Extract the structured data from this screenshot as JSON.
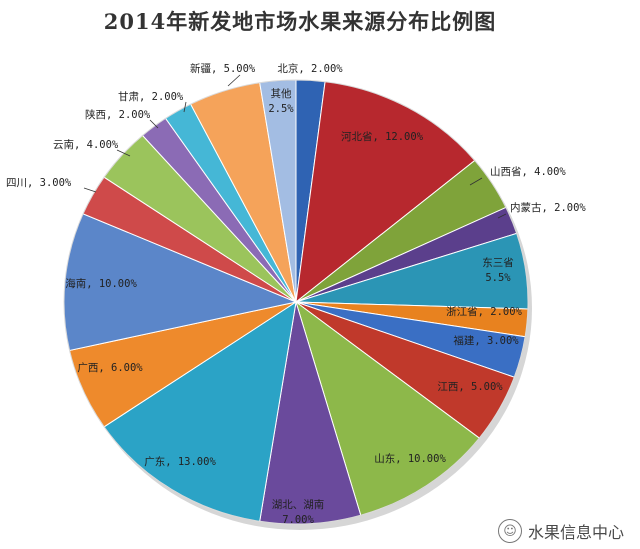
{
  "chart_data": {
    "type": "pie",
    "title": "2014年新发地市场水果来源分布比例图",
    "slices": [
      {
        "label": "北京",
        "value_label": "2.00%",
        "value": 2.0,
        "color": "#2f63b3"
      },
      {
        "label": "河北省",
        "value_label": "12.00%",
        "value": 12.0,
        "color": "#b7282e"
      },
      {
        "label": "山西省",
        "value_label": "4.00%",
        "value": 4.0,
        "color": "#7fa33a"
      },
      {
        "label": "内蒙古",
        "value_label": "2.00%",
        "value": 2.0,
        "color": "#5b3f8c"
      },
      {
        "label": "东三省",
        "value_label": "5.5%",
        "value": 5.5,
        "color": "#2b95b5"
      },
      {
        "label": "浙江省",
        "value_label": "2.00%",
        "value": 2.0,
        "color": "#e8821f"
      },
      {
        "label": "福建",
        "value_label": "3.00%",
        "value": 3.0,
        "color": "#3a6fc4"
      },
      {
        "label": "江西",
        "value_label": "5.00%",
        "value": 5.0,
        "color": "#c0392b"
      },
      {
        "label": "山东",
        "value_label": "10.00%",
        "value": 10.0,
        "color": "#8db84a"
      },
      {
        "label": "湖北、湖南",
        "value_label": "7.00%",
        "value": 7.0,
        "color": "#6a4a9c"
      },
      {
        "label": "广东",
        "value_label": "13.00%",
        "value": 13.0,
        "color": "#2ba3c6"
      },
      {
        "label": "广西",
        "value_label": "6.00%",
        "value": 6.0,
        "color": "#ee8a2c"
      },
      {
        "label": "海南",
        "value_label": "10.00%",
        "value": 10.0,
        "color": "#5b86c9"
      },
      {
        "label": "四川",
        "value_label": "3.00%",
        "value": 3.0,
        "color": "#cf4a4a"
      },
      {
        "label": "云南",
        "value_label": "4.00%",
        "value": 4.0,
        "color": "#9bc45c"
      },
      {
        "label": "陕西",
        "value_label": "2.00%",
        "value": 2.0,
        "color": "#8b6bb5"
      },
      {
        "label": "甘肃",
        "value_label": "2.00%",
        "value": 2.0,
        "color": "#45b7d6"
      },
      {
        "label": "新疆",
        "value_label": "5.00%",
        "value": 5.0,
        "color": "#f5a35a"
      },
      {
        "label": "其他",
        "value_label": "2.5%",
        "value": 2.5,
        "color": "#a3bde3"
      }
    ],
    "legend": "none"
  },
  "watermark": {
    "text": "水果信息中心",
    "icon": "wechat-icon"
  }
}
